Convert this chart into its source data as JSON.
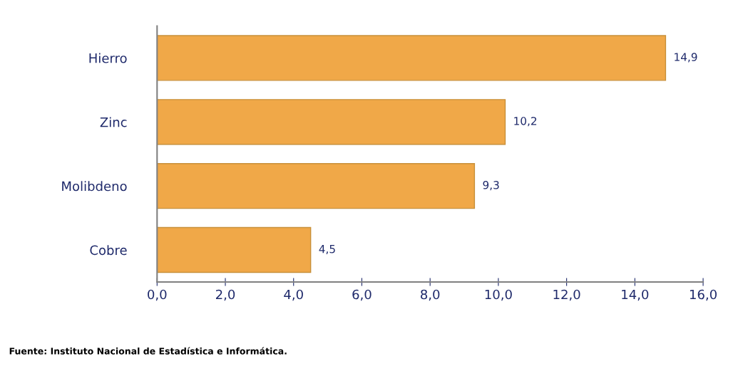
{
  "chart_data": {
    "type": "bar",
    "orientation": "horizontal",
    "categories": [
      "Hierro",
      "Zinc",
      "Molibdeno",
      "Cobre"
    ],
    "values": [
      14.9,
      10.2,
      9.3,
      4.5
    ],
    "value_labels": [
      "14,9",
      "10,2",
      "9,3",
      "4,5"
    ],
    "color": "#f0a848",
    "xlim": [
      0,
      16
    ],
    "xticks": [
      {
        "value": 0,
        "label": "0,0"
      },
      {
        "value": 2,
        "label": "2,0"
      },
      {
        "value": 4,
        "label": "4,0"
      },
      {
        "value": 6,
        "label": "6,0"
      },
      {
        "value": 8,
        "label": "8,0"
      },
      {
        "value": 10,
        "label": "10,0"
      },
      {
        "value": 12,
        "label": "12,0"
      },
      {
        "value": 14,
        "label": "14,0"
      },
      {
        "value": 16,
        "label": "16,0"
      }
    ],
    "annotations": [
      "Fuente: Instituto Nacional de Estadística e Informática."
    ]
  }
}
